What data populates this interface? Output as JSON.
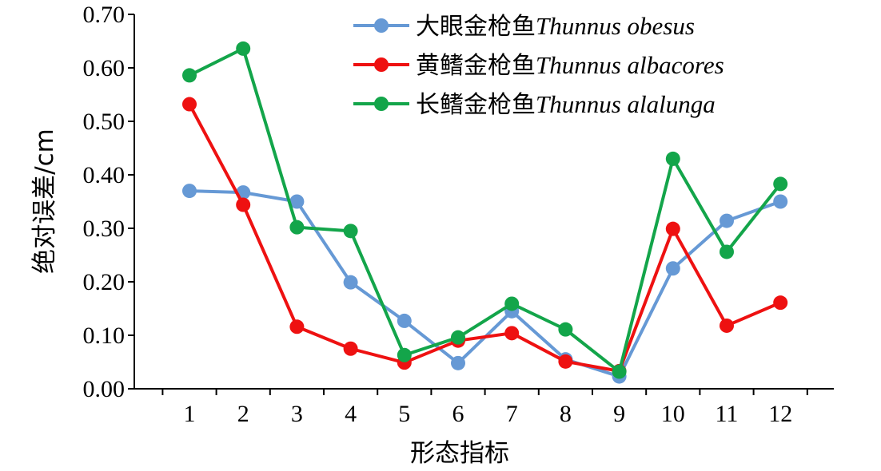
{
  "chart_data": {
    "type": "line",
    "xlabel": "形态指标",
    "ylabel": "绝对误差/cm",
    "ylim": [
      0,
      0.7
    ],
    "yticks": [
      "0.00",
      "0.10",
      "0.20",
      "0.30",
      "0.40",
      "0.50",
      "0.60",
      "0.70"
    ],
    "categories": [
      "1",
      "2",
      "3",
      "4",
      "5",
      "6",
      "7",
      "8",
      "9",
      "10",
      "11",
      "12"
    ],
    "grid": false,
    "legend_position": "top-right",
    "series": [
      {
        "name_cn": "大眼金枪鱼",
        "name_latin": "Thunnus obesus",
        "color": "#6699d5",
        "values": [
          0.37,
          0.367,
          0.35,
          0.199,
          0.127,
          0.048,
          0.145,
          0.055,
          0.023,
          0.225,
          0.314,
          0.35
        ]
      },
      {
        "name_cn": "黄鳍金枪鱼",
        "name_latin": "Thunnus albacores",
        "color": "#ee1111",
        "values": [
          0.532,
          0.344,
          0.116,
          0.075,
          0.049,
          0.09,
          0.104,
          0.051,
          0.033,
          0.299,
          0.118,
          0.161
        ]
      },
      {
        "name_cn": "长鳍金枪鱼",
        "name_latin": "Thunnus alalunga",
        "color": "#13a54a",
        "values": [
          0.586,
          0.636,
          0.302,
          0.295,
          0.063,
          0.096,
          0.159,
          0.111,
          0.032,
          0.43,
          0.256,
          0.383
        ]
      }
    ]
  }
}
